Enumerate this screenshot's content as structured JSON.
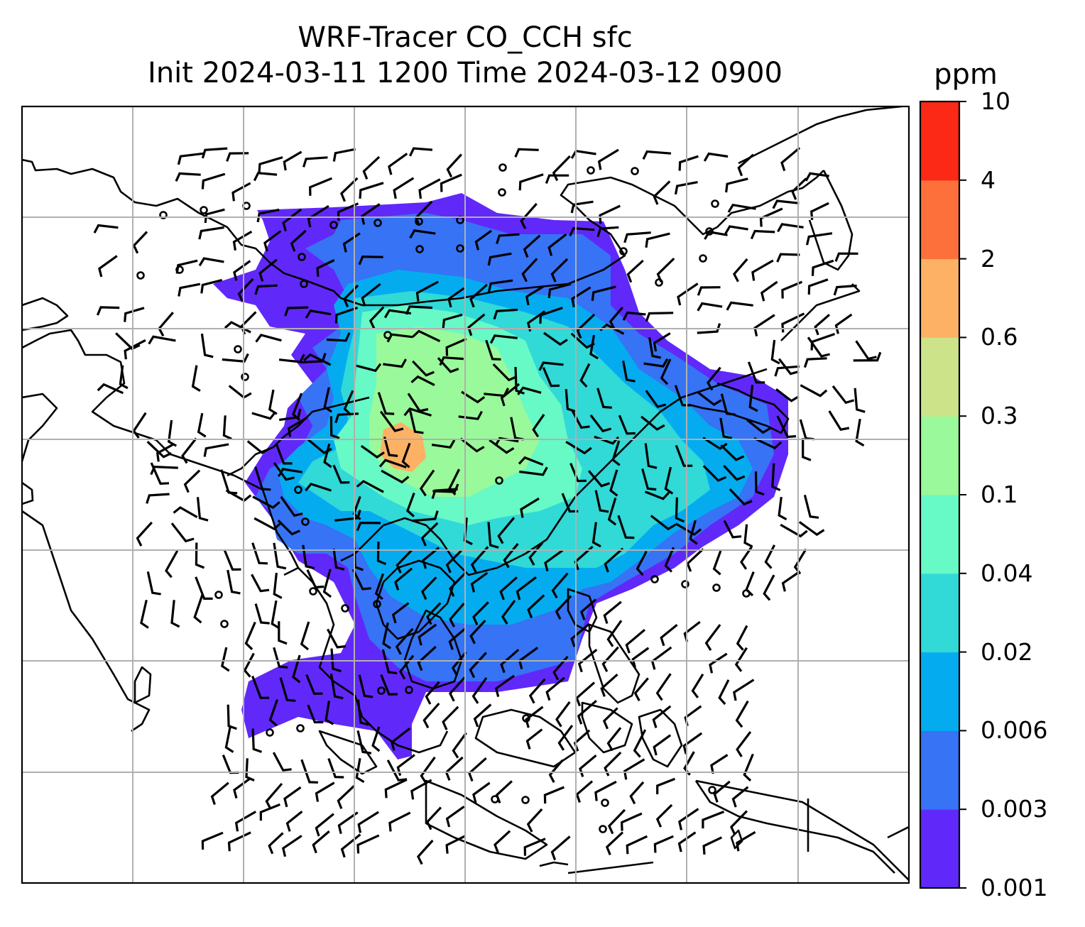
{
  "title": {
    "line1": "WRF-Tracer CO_CCH sfc",
    "line2": "Init 2024-03-11 1200 Time 2024-03-12 0900"
  },
  "colorbar": {
    "unit": "ppm",
    "levels": [
      "0.001",
      "0.003",
      "0.006",
      "0.02",
      "0.04",
      "0.1",
      "0.3",
      "0.6",
      "2",
      "4",
      "10"
    ],
    "colors": [
      "#6128fa",
      "#3673f5",
      "#04acef",
      "#31d9d7",
      "#67f9c6",
      "#9af99a",
      "#cde38a",
      "#fdb164",
      "#fd703c",
      "#fb2915"
    ]
  },
  "map": {
    "tracer_fill_colors": {
      "lowest": "#6128fa",
      "low": "#3673f5",
      "low_mid": "#04acef",
      "mid": "#31d9d7",
      "mid_high": "#67f9c6",
      "high": "#9af99a",
      "peak": "#fdb164"
    },
    "gridlines": "on",
    "coastline_color": "#000000"
  }
}
